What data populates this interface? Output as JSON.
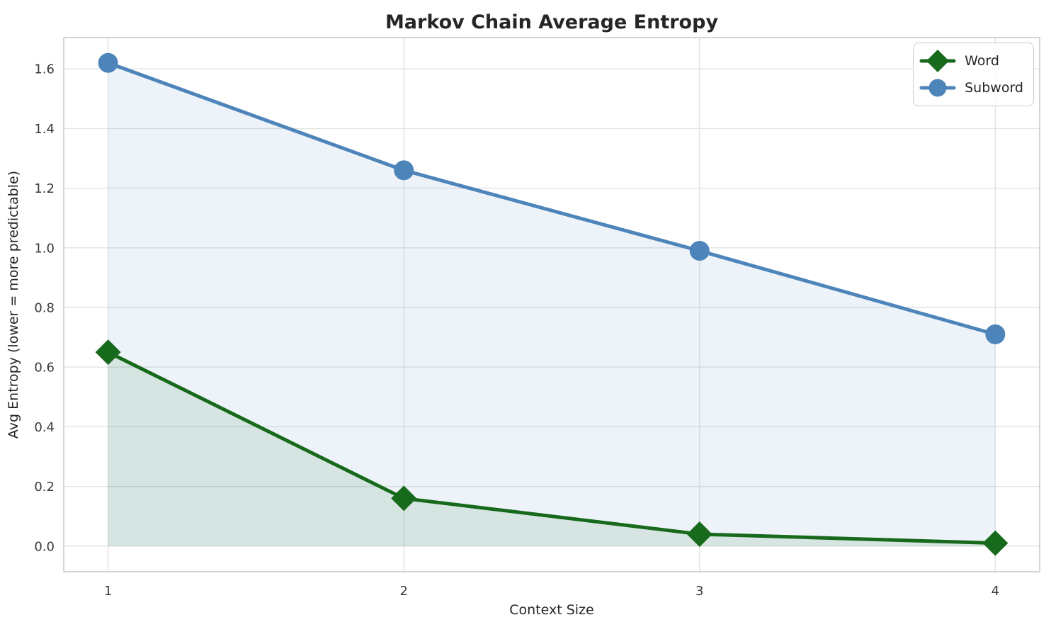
{
  "chart_data": {
    "type": "line",
    "title": "Markov Chain Average Entropy",
    "xlabel": "Context Size",
    "ylabel": "Avg Entropy (lower = more predictable)",
    "x": [
      1,
      2,
      3,
      4
    ],
    "xtick_labels": [
      "1",
      "2",
      "3",
      "4"
    ],
    "yticks": [
      0.0,
      0.2,
      0.4,
      0.6,
      0.8,
      1.0,
      1.2,
      1.4,
      1.6
    ],
    "ytick_labels": [
      "0.0",
      "0.2",
      "0.4",
      "0.6",
      "0.8",
      "1.0",
      "1.2",
      "1.4",
      "1.6"
    ],
    "xlim": [
      0.85,
      4.15
    ],
    "ylim": [
      -0.086,
      1.705
    ],
    "grid": true,
    "legend_position": "upper-right",
    "series": [
      {
        "name": "Word",
        "marker": "diamond",
        "color": "#17691c",
        "fill_opacity": 0.1,
        "values": [
          0.65,
          0.16,
          0.04,
          0.01
        ]
      },
      {
        "name": "Subword",
        "marker": "circle",
        "color": "#4d85bb",
        "fill_opacity": 0.1,
        "values": [
          1.62,
          1.26,
          0.99,
          0.71
        ]
      }
    ],
    "colors": {
      "background": "#ffffff",
      "grid": "#e2e2e2",
      "spine": "#c6c6c6",
      "title_text": "#262626",
      "tick_text": "#3a3a3a"
    }
  }
}
